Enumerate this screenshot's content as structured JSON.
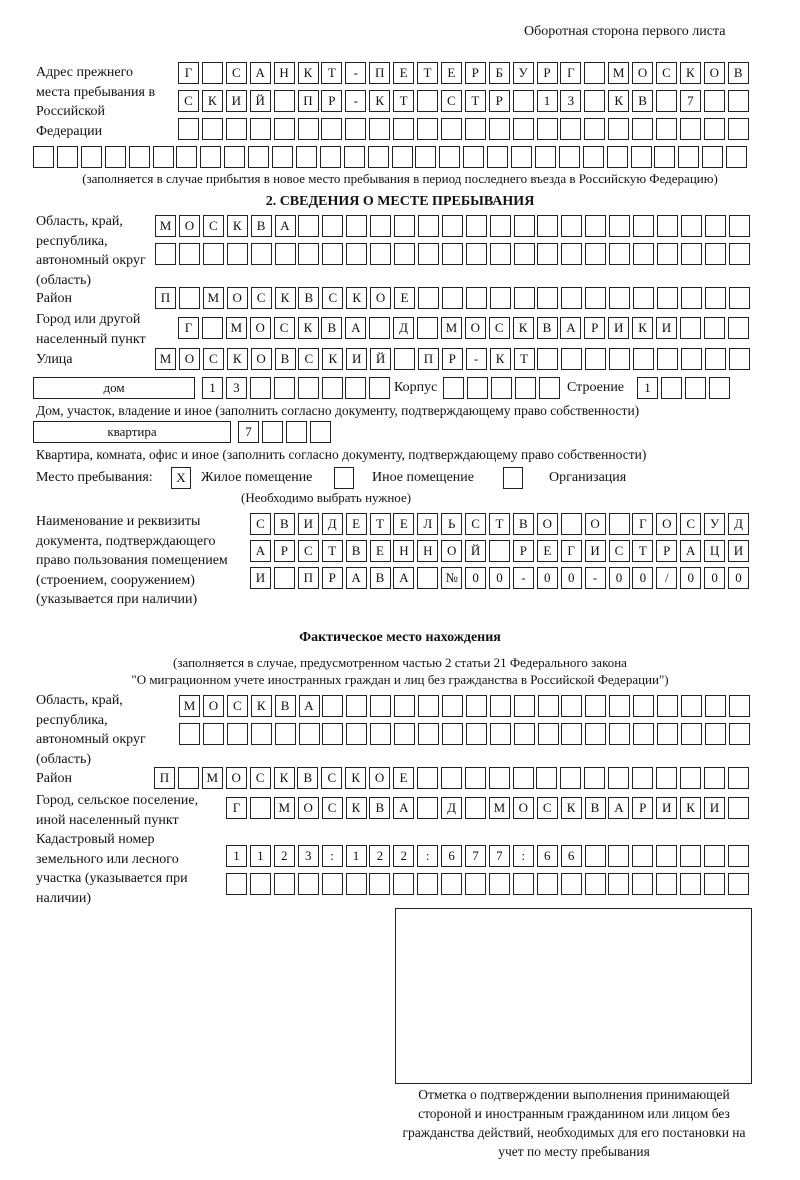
{
  "header": {
    "page_side": "Оборотная сторона первого листа"
  },
  "previous_address": {
    "label": "Адрес прежнего места пребывания в Российской Федерации",
    "rows": [
      [
        "Г",
        "",
        "С",
        "А",
        "Н",
        "К",
        "Т",
        "-",
        "П",
        "Е",
        "Т",
        "Е",
        "Р",
        "Б",
        "У",
        "Р",
        "Г",
        "",
        "М",
        "О",
        "С",
        "К",
        "О",
        "В"
      ],
      [
        "С",
        "К",
        "И",
        "Й",
        "",
        "П",
        "Р",
        "-",
        "К",
        "Т",
        "",
        "С",
        "Т",
        "Р",
        "",
        "1",
        "3",
        "",
        "К",
        "В",
        "",
        "7",
        "",
        ""
      ],
      [
        "",
        "",
        "",
        "",
        "",
        "",
        "",
        "",
        "",
        "",
        "",
        "",
        "",
        "",
        "",
        "",
        "",
        "",
        "",
        "",
        "",
        "",
        "",
        ""
      ],
      [
        "",
        "",
        "",
        "",
        "",
        "",
        "",
        "",
        "",
        "",
        "",
        "",
        "",
        "",
        "",
        "",
        "",
        "",
        "",
        "",
        "",
        "",
        "",
        "",
        "",
        "",
        "",
        "",
        "",
        ""
      ]
    ],
    "note": "(заполняется в случае прибытия в новое место пребывания в период последнего въезда в Российскую Федерацию)"
  },
  "section2": {
    "title": "2. СВЕДЕНИЯ О МЕСТЕ ПРЕБЫВАНИЯ",
    "region_label": "Область, край, республика, автономный округ (область)",
    "region_rows": [
      [
        "М",
        "О",
        "С",
        "К",
        "В",
        "А",
        "",
        "",
        "",
        "",
        "",
        "",
        "",
        "",
        "",
        "",
        "",
        "",
        "",
        "",
        "",
        "",
        "",
        "",
        ""
      ],
      [
        "",
        "",
        "",
        "",
        "",
        "",
        "",
        "",
        "",
        "",
        "",
        "",
        "",
        "",
        "",
        "",
        "",
        "",
        "",
        "",
        "",
        "",
        "",
        "",
        ""
      ]
    ],
    "district_label": "Район",
    "district_row": [
      "П",
      "",
      "М",
      "О",
      "С",
      "К",
      "В",
      "С",
      "К",
      "О",
      "Е",
      "",
      "",
      "",
      "",
      "",
      "",
      "",
      "",
      "",
      "",
      "",
      "",
      "",
      ""
    ],
    "city_label": "Город или другой населенный пункт",
    "city_row": [
      "Г",
      "",
      "М",
      "О",
      "С",
      "К",
      "В",
      "А",
      "",
      "Д",
      "",
      "М",
      "О",
      "С",
      "К",
      "В",
      "А",
      "Р",
      "И",
      "К",
      "И",
      "",
      "",
      ""
    ],
    "street_label": "Улица",
    "street_row": [
      "М",
      "О",
      "С",
      "К",
      "О",
      "В",
      "С",
      "К",
      "И",
      "Й",
      "",
      "П",
      "Р",
      "-",
      "К",
      "Т",
      "",
      "",
      "",
      "",
      "",
      "",
      "",
      "",
      ""
    ],
    "house_type": "дом",
    "house_cells": [
      "1",
      "3",
      "",
      "",
      "",
      "",
      "",
      ""
    ],
    "korpus_label": "Корпус",
    "korpus_cells": [
      "",
      "",
      "",
      "",
      ""
    ],
    "stroenie_label": "Строение",
    "stroenie_cells": [
      "1",
      "",
      "",
      ""
    ],
    "house_note": "Дом, участок, владение и иное (заполнить согласно документу, подтверждающему право собственности)",
    "apt_type": "квартира",
    "apt_cells": [
      "7",
      "",
      "",
      ""
    ],
    "apt_note": "Квартира, комната, офис и иное (заполнить согласно документу, подтверждающему право собственности)",
    "stay_place_label": "Место пребывания:",
    "stay_options": [
      {
        "mark": "X",
        "label": "Жилое помещение"
      },
      {
        "mark": "",
        "label": "Иное помещение"
      },
      {
        "mark": "",
        "label": "Организация"
      }
    ],
    "stay_note": "(Необходимо выбрать нужное)",
    "document_label": "Наименование и реквизиты документа, подтверждающего право пользования помещением (строением, сооружением) (указывается при наличии)",
    "document_rows": [
      [
        "С",
        "В",
        "И",
        "Д",
        "Е",
        "Т",
        "Е",
        "Л",
        "Ь",
        "С",
        "Т",
        "В",
        "О",
        "",
        "О",
        "",
        "Г",
        "О",
        "С",
        "У",
        "Д"
      ],
      [
        "А",
        "Р",
        "С",
        "Т",
        "В",
        "Е",
        "Н",
        "Н",
        "О",
        "Й",
        "",
        "Р",
        "Е",
        "Г",
        "И",
        "С",
        "Т",
        "Р",
        "А",
        "Ц",
        "И"
      ],
      [
        "И",
        "",
        "П",
        "Р",
        "А",
        "В",
        "А",
        "",
        "№",
        "0",
        "0",
        "-",
        "0",
        "0",
        "-",
        "0",
        "0",
        "/",
        "0",
        "0",
        "0"
      ]
    ]
  },
  "actual_location": {
    "title": "Фактическое место нахождения",
    "note_line1": "(заполняется в случае, предусмотренном частью 2 статьи 21 Федерального закона",
    "note_line2": "\"О миграционном учете иностранных граждан и лиц без гражданства в Российской Федерации\")",
    "region_label": "Область, край, республика, автономный округ (область)",
    "region_rows": [
      [
        "М",
        "О",
        "С",
        "К",
        "В",
        "А",
        "",
        "",
        "",
        "",
        "",
        "",
        "",
        "",
        "",
        "",
        "",
        "",
        "",
        "",
        "",
        "",
        "",
        ""
      ],
      [
        "",
        "",
        "",
        "",
        "",
        "",
        "",
        "",
        "",
        "",
        "",
        "",
        "",
        "",
        "",
        "",
        "",
        "",
        "",
        "",
        "",
        "",
        "",
        ""
      ]
    ],
    "district_label": "Район",
    "district_row": [
      "П",
      "",
      "М",
      "О",
      "С",
      "К",
      "В",
      "С",
      "К",
      "О",
      "Е",
      "",
      "",
      "",
      "",
      "",
      "",
      "",
      "",
      "",
      "",
      "",
      "",
      "",
      ""
    ],
    "city_label": "Город, сельское поселение, иной населенный пункт",
    "city_row": [
      "Г",
      "",
      "М",
      "О",
      "С",
      "К",
      "В",
      "А",
      "",
      "Д",
      "",
      "М",
      "О",
      "С",
      "К",
      "В",
      "А",
      "Р",
      "И",
      "К",
      "И",
      ""
    ],
    "cadastral_label": "Кадастровый номер земельного или лесного участка (указывается при наличии)",
    "cadastral_rows": [
      [
        "1",
        "1",
        "2",
        "3",
        ":",
        "1",
        "2",
        "2",
        ":",
        "6",
        "7",
        "7",
        ":",
        "6",
        "6",
        "",
        "",
        "",
        "",
        "",
        "",
        ""
      ],
      [
        "",
        "",
        "",
        "",
        "",
        "",
        "",
        "",
        "",
        "",
        "",
        "",
        "",
        "",
        "",
        "",
        "",
        "",
        "",
        "",
        "",
        ""
      ]
    ]
  },
  "confirmation": {
    "caption": "Отметка о подтверждении выполнения принимающей стороной и иностранным гражданином или лицом без гражданства действий, необходимых для его постановки на учет по месту пребывания"
  }
}
